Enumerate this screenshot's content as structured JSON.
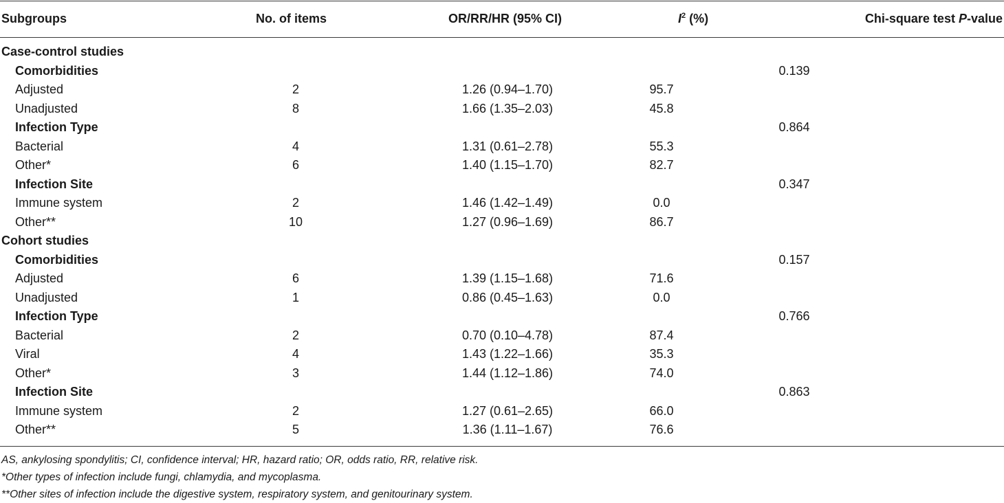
{
  "header": {
    "subgroups": "Subgroups",
    "items": "No. of items",
    "ci": "OR/RR/HR (95% CI)",
    "i2_letter": "I",
    "i2_sup": "2",
    "i2_unit": "(%)",
    "chi_prefix": "Chi-square test ",
    "chi_p": "P",
    "chi_suffix": "-value"
  },
  "rows": [
    {
      "type": "group",
      "label": "Case-control studies",
      "n": "",
      "ci": "",
      "i2": "",
      "p": ""
    },
    {
      "type": "subgroup",
      "label": "Comorbidities",
      "n": "",
      "ci": "",
      "i2": "",
      "p": "0.139"
    },
    {
      "type": "item",
      "label": "Adjusted",
      "n": "2",
      "ci": "1.26 (0.94–1.70)",
      "i2": "95.7",
      "p": ""
    },
    {
      "type": "item",
      "label": "Unadjusted",
      "n": "8",
      "ci": "1.66 (1.35–2.03)",
      "i2": "45.8",
      "p": ""
    },
    {
      "type": "subgroup",
      "label": "Infection Type",
      "n": "",
      "ci": "",
      "i2": "",
      "p": "0.864"
    },
    {
      "type": "item",
      "label": "Bacterial",
      "n": "4",
      "ci": "1.31 (0.61–2.78)",
      "i2": "55.3",
      "p": ""
    },
    {
      "type": "item",
      "label": "Other*",
      "n": "6",
      "ci": "1.40 (1.15–1.70)",
      "i2": "82.7",
      "p": ""
    },
    {
      "type": "subgroup",
      "label": "Infection Site",
      "n": "",
      "ci": "",
      "i2": "",
      "p": "0.347"
    },
    {
      "type": "item",
      "label": "Immune system",
      "n": "2",
      "ci": "1.46 (1.42–1.49)",
      "i2": "0.0",
      "p": ""
    },
    {
      "type": "item",
      "label": "Other**",
      "n": "10",
      "ci": "1.27 (0.96–1.69)",
      "i2": "86.7",
      "p": ""
    },
    {
      "type": "group",
      "label": "Cohort studies",
      "n": "",
      "ci": "",
      "i2": "",
      "p": ""
    },
    {
      "type": "subgroup",
      "label": "Comorbidities",
      "n": "",
      "ci": "",
      "i2": "",
      "p": "0.157"
    },
    {
      "type": "item",
      "label": "Adjusted",
      "n": "6",
      "ci": "1.39 (1.15–1.68)",
      "i2": "71.6",
      "p": ""
    },
    {
      "type": "item",
      "label": "Unadjusted",
      "n": "1",
      "ci": "0.86 (0.45–1.63)",
      "i2": "0.0",
      "p": ""
    },
    {
      "type": "subgroup",
      "label": "Infection Type",
      "n": "",
      "ci": "",
      "i2": "",
      "p": "0.766"
    },
    {
      "type": "item",
      "label": "Bacterial",
      "n": "2",
      "ci": "0.70 (0.10–4.78)",
      "i2": "87.4",
      "p": ""
    },
    {
      "type": "item",
      "label": "Viral",
      "n": "4",
      "ci": "1.43 (1.22–1.66)",
      "i2": "35.3",
      "p": ""
    },
    {
      "type": "item",
      "label": "Other*",
      "n": "3",
      "ci": "1.44 (1.12–1.86)",
      "i2": "74.0",
      "p": ""
    },
    {
      "type": "subgroup",
      "label": "Infection Site",
      "n": "",
      "ci": "",
      "i2": "",
      "p": "0.863"
    },
    {
      "type": "item",
      "label": "Immune system",
      "n": "2",
      "ci": "1.27 (0.61–2.65)",
      "i2": "66.0",
      "p": ""
    },
    {
      "type": "item",
      "label": "Other**",
      "n": "5",
      "ci": "1.36 (1.11–1.67)",
      "i2": "76.6",
      "p": ""
    }
  ],
  "footnotes": {
    "abbrev": "AS, ankylosing spondylitis; CI, confidence interval; HR, hazard ratio; OR, odds ratio, RR, relative risk.",
    "note1": "*Other types of infection include fungi, chlamydia, and mycoplasma.",
    "note2": "**Other sites of infection include the digestive system, respiratory system, and genitourinary system."
  }
}
